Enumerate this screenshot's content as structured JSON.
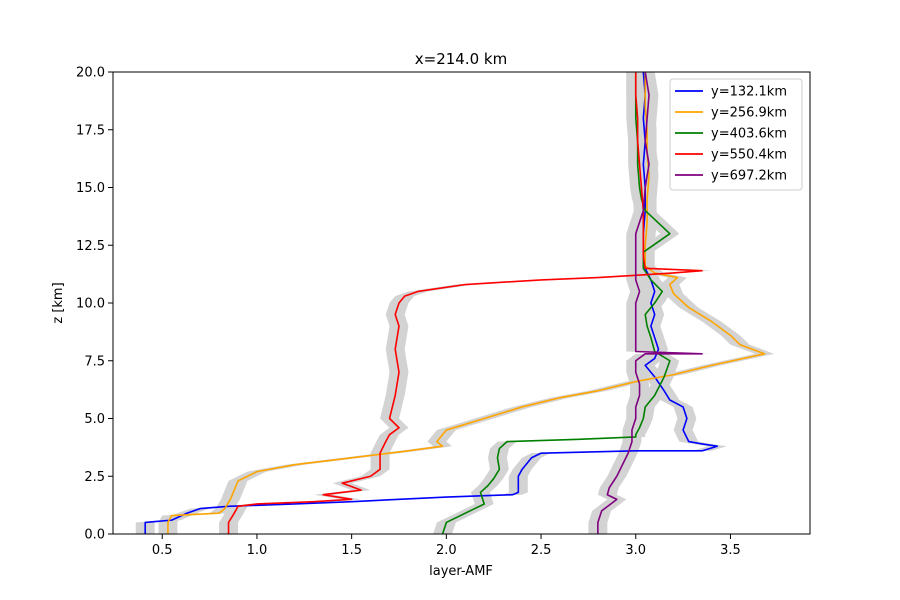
{
  "chart_data": {
    "type": "line",
    "title": "x=214.0 km",
    "xlabel": "layer-AMF",
    "ylabel": "z [km]",
    "xlim": [
      0.24,
      3.92
    ],
    "ylim": [
      0,
      20
    ],
    "xticks": [
      0.5,
      1.0,
      1.5,
      2.0,
      2.5,
      3.0,
      3.5
    ],
    "xtick_labels": [
      "0.5",
      "1.0",
      "1.5",
      "2.0",
      "2.5",
      "3.0",
      "3.5"
    ],
    "yticks": [
      0,
      2.5,
      5,
      7.5,
      10,
      12.5,
      15,
      17.5,
      20
    ],
    "ytick_labels": [
      "0.0",
      "2.5",
      "5.0",
      "7.5",
      "10.0",
      "12.5",
      "15.0",
      "17.5",
      "20.0"
    ],
    "grid": false,
    "legend_position": "top-right",
    "uncertainty_band_color": "#d3d3d3",
    "uncertainty_band_width": 0.05,
    "series": [
      {
        "name": "y=132.1km",
        "color": "#0000ff",
        "points": [
          [
            0.41,
            0
          ],
          [
            0.41,
            0.5
          ],
          [
            0.55,
            0.6
          ],
          [
            0.63,
            0.9
          ],
          [
            0.7,
            1.1
          ],
          [
            0.85,
            1.2
          ],
          [
            1.2,
            1.3
          ],
          [
            1.5,
            1.4
          ],
          [
            2.0,
            1.6
          ],
          [
            2.35,
            1.7
          ],
          [
            2.38,
            1.8
          ],
          [
            2.38,
            2.5
          ],
          [
            2.4,
            2.8
          ],
          [
            2.45,
            3.3
          ],
          [
            2.5,
            3.5
          ],
          [
            3.0,
            3.6
          ],
          [
            3.35,
            3.6
          ],
          [
            3.43,
            3.8
          ],
          [
            3.35,
            3.9
          ],
          [
            3.28,
            4.0
          ],
          [
            3.25,
            4.5
          ],
          [
            3.27,
            5.0
          ],
          [
            3.25,
            5.5
          ],
          [
            3.18,
            5.8
          ],
          [
            3.15,
            6.2
          ],
          [
            3.1,
            6.8
          ],
          [
            3.05,
            7.3
          ],
          [
            3.1,
            7.6
          ],
          [
            3.12,
            8.0
          ],
          [
            3.1,
            8.5
          ],
          [
            3.08,
            9.0
          ],
          [
            3.1,
            9.5
          ],
          [
            3.08,
            10.0
          ],
          [
            3.1,
            10.5
          ],
          [
            3.08,
            11.0
          ],
          [
            3.05,
            11.5
          ],
          [
            3.04,
            12.0
          ],
          [
            3.04,
            13.0
          ],
          [
            3.05,
            14.0
          ],
          [
            3.05,
            15.0
          ],
          [
            3.04,
            16.0
          ],
          [
            3.05,
            17.0
          ],
          [
            3.04,
            18.0
          ],
          [
            3.05,
            19.0
          ],
          [
            3.04,
            20.0
          ]
        ]
      },
      {
        "name": "y=256.9km",
        "color": "#ffa500",
        "points": [
          [
            0.53,
            0
          ],
          [
            0.53,
            0.5
          ],
          [
            0.55,
            0.8
          ],
          [
            0.8,
            0.9
          ],
          [
            0.83,
            1.1
          ],
          [
            0.86,
            1.5
          ],
          [
            0.9,
            2.3
          ],
          [
            1.0,
            2.7
          ],
          [
            1.2,
            3.0
          ],
          [
            1.5,
            3.3
          ],
          [
            1.8,
            3.6
          ],
          [
            1.98,
            3.8
          ],
          [
            1.95,
            4.0
          ],
          [
            2.0,
            4.5
          ],
          [
            2.2,
            5.0
          ],
          [
            2.4,
            5.5
          ],
          [
            2.6,
            5.9
          ],
          [
            2.8,
            6.2
          ],
          [
            3.0,
            6.6
          ],
          [
            3.2,
            6.9
          ],
          [
            3.4,
            7.3
          ],
          [
            3.68,
            7.8
          ],
          [
            3.55,
            8.2
          ],
          [
            3.5,
            8.6
          ],
          [
            3.4,
            9.2
          ],
          [
            3.28,
            9.8
          ],
          [
            3.2,
            10.4
          ],
          [
            3.18,
            10.8
          ],
          [
            3.22,
            11.1
          ],
          [
            3.1,
            11.3
          ],
          [
            3.05,
            11.6
          ],
          [
            3.05,
            12.5
          ],
          [
            3.06,
            13.5
          ],
          [
            3.06,
            14.5
          ],
          [
            3.07,
            15.5
          ],
          [
            3.06,
            16.5
          ],
          [
            3.06,
            17.5
          ],
          [
            3.05,
            18.5
          ],
          [
            3.05,
            20.0
          ]
        ]
      },
      {
        "name": "y=403.6km",
        "color": "#008000",
        "points": [
          [
            1.98,
            0
          ],
          [
            2.0,
            0.5
          ],
          [
            2.05,
            0.7
          ],
          [
            2.1,
            0.9
          ],
          [
            2.15,
            1.1
          ],
          [
            2.2,
            1.3
          ],
          [
            2.18,
            1.8
          ],
          [
            2.22,
            2.1
          ],
          [
            2.25,
            2.4
          ],
          [
            2.28,
            2.8
          ],
          [
            2.27,
            3.3
          ],
          [
            2.28,
            3.7
          ],
          [
            2.32,
            4.0
          ],
          [
            2.7,
            4.1
          ],
          [
            3.0,
            4.2
          ],
          [
            3.0,
            4.3
          ],
          [
            3.02,
            4.6
          ],
          [
            3.04,
            5.0
          ],
          [
            3.05,
            5.5
          ],
          [
            3.1,
            6.0
          ],
          [
            3.15,
            6.8
          ],
          [
            3.18,
            7.5
          ],
          [
            3.1,
            7.9
          ],
          [
            3.08,
            8.5
          ],
          [
            3.06,
            9.0
          ],
          [
            3.05,
            9.5
          ],
          [
            3.1,
            10.0
          ],
          [
            3.14,
            10.5
          ],
          [
            3.08,
            11.0
          ],
          [
            3.04,
            11.5
          ],
          [
            3.04,
            12.2
          ],
          [
            3.18,
            13.0
          ],
          [
            3.05,
            14.0
          ],
          [
            3.03,
            14.5
          ],
          [
            3.02,
            15.0
          ],
          [
            3.01,
            16.0
          ],
          [
            3.01,
            17.0
          ],
          [
            3.0,
            18.0
          ],
          [
            3.0,
            19.0
          ],
          [
            3.0,
            20.0
          ]
        ]
      },
      {
        "name": "y=550.4km",
        "color": "#ff0000",
        "points": [
          [
            0.85,
            0
          ],
          [
            0.85,
            0.5
          ],
          [
            0.88,
            0.9
          ],
          [
            0.9,
            1.2
          ],
          [
            1.0,
            1.3
          ],
          [
            1.3,
            1.4
          ],
          [
            1.5,
            1.5
          ],
          [
            1.35,
            1.7
          ],
          [
            1.55,
            1.9
          ],
          [
            1.45,
            2.2
          ],
          [
            1.6,
            2.5
          ],
          [
            1.65,
            2.8
          ],
          [
            1.65,
            3.5
          ],
          [
            1.68,
            4.0
          ],
          [
            1.7,
            4.3
          ],
          [
            1.75,
            4.6
          ],
          [
            1.7,
            5.0
          ],
          [
            1.73,
            6.0
          ],
          [
            1.75,
            7.0
          ],
          [
            1.73,
            8.0
          ],
          [
            1.75,
            9.0
          ],
          [
            1.73,
            9.5
          ],
          [
            1.75,
            10.0
          ],
          [
            1.78,
            10.3
          ],
          [
            1.85,
            10.5
          ],
          [
            2.1,
            10.8
          ],
          [
            2.5,
            11.0
          ],
          [
            2.8,
            11.1
          ],
          [
            3.0,
            11.2
          ],
          [
            3.2,
            11.3
          ],
          [
            3.35,
            11.4
          ],
          [
            3.05,
            11.5
          ],
          [
            3.04,
            12.0
          ],
          [
            3.04,
            13.0
          ],
          [
            3.04,
            14.0
          ],
          [
            3.03,
            15.0
          ],
          [
            3.02,
            16.0
          ],
          [
            3.01,
            17.0
          ],
          [
            3.01,
            18.0
          ],
          [
            3.0,
            19.0
          ],
          [
            3.0,
            20.0
          ]
        ]
      },
      {
        "name": "y=697.2km",
        "color": "#800080",
        "points": [
          [
            2.8,
            0
          ],
          [
            2.8,
            0.5
          ],
          [
            2.82,
            1.0
          ],
          [
            2.9,
            1.5
          ],
          [
            2.85,
            1.7
          ],
          [
            2.86,
            2.0
          ],
          [
            2.9,
            2.5
          ],
          [
            2.93,
            3.0
          ],
          [
            2.96,
            3.5
          ],
          [
            2.98,
            4.0
          ],
          [
            2.98,
            4.5
          ],
          [
            3.0,
            5.0
          ],
          [
            3.0,
            5.5
          ],
          [
            3.02,
            6.0
          ],
          [
            3.02,
            6.5
          ],
          [
            3.0,
            7.0
          ],
          [
            3.0,
            7.5
          ],
          [
            3.05,
            7.8
          ],
          [
            3.35,
            7.8
          ],
          [
            3.0,
            7.9
          ],
          [
            3.0,
            8.5
          ],
          [
            3.0,
            9.0
          ],
          [
            3.0,
            9.5
          ],
          [
            3.0,
            10.0
          ],
          [
            3.02,
            10.5
          ],
          [
            3.0,
            11.0
          ],
          [
            3.0,
            12.0
          ],
          [
            3.0,
            13.0
          ],
          [
            3.04,
            14.0
          ],
          [
            3.05,
            15.0
          ],
          [
            3.07,
            16.0
          ],
          [
            3.05,
            17.0
          ],
          [
            3.06,
            18.0
          ],
          [
            3.07,
            19.0
          ],
          [
            3.05,
            20.0
          ]
        ]
      }
    ]
  }
}
